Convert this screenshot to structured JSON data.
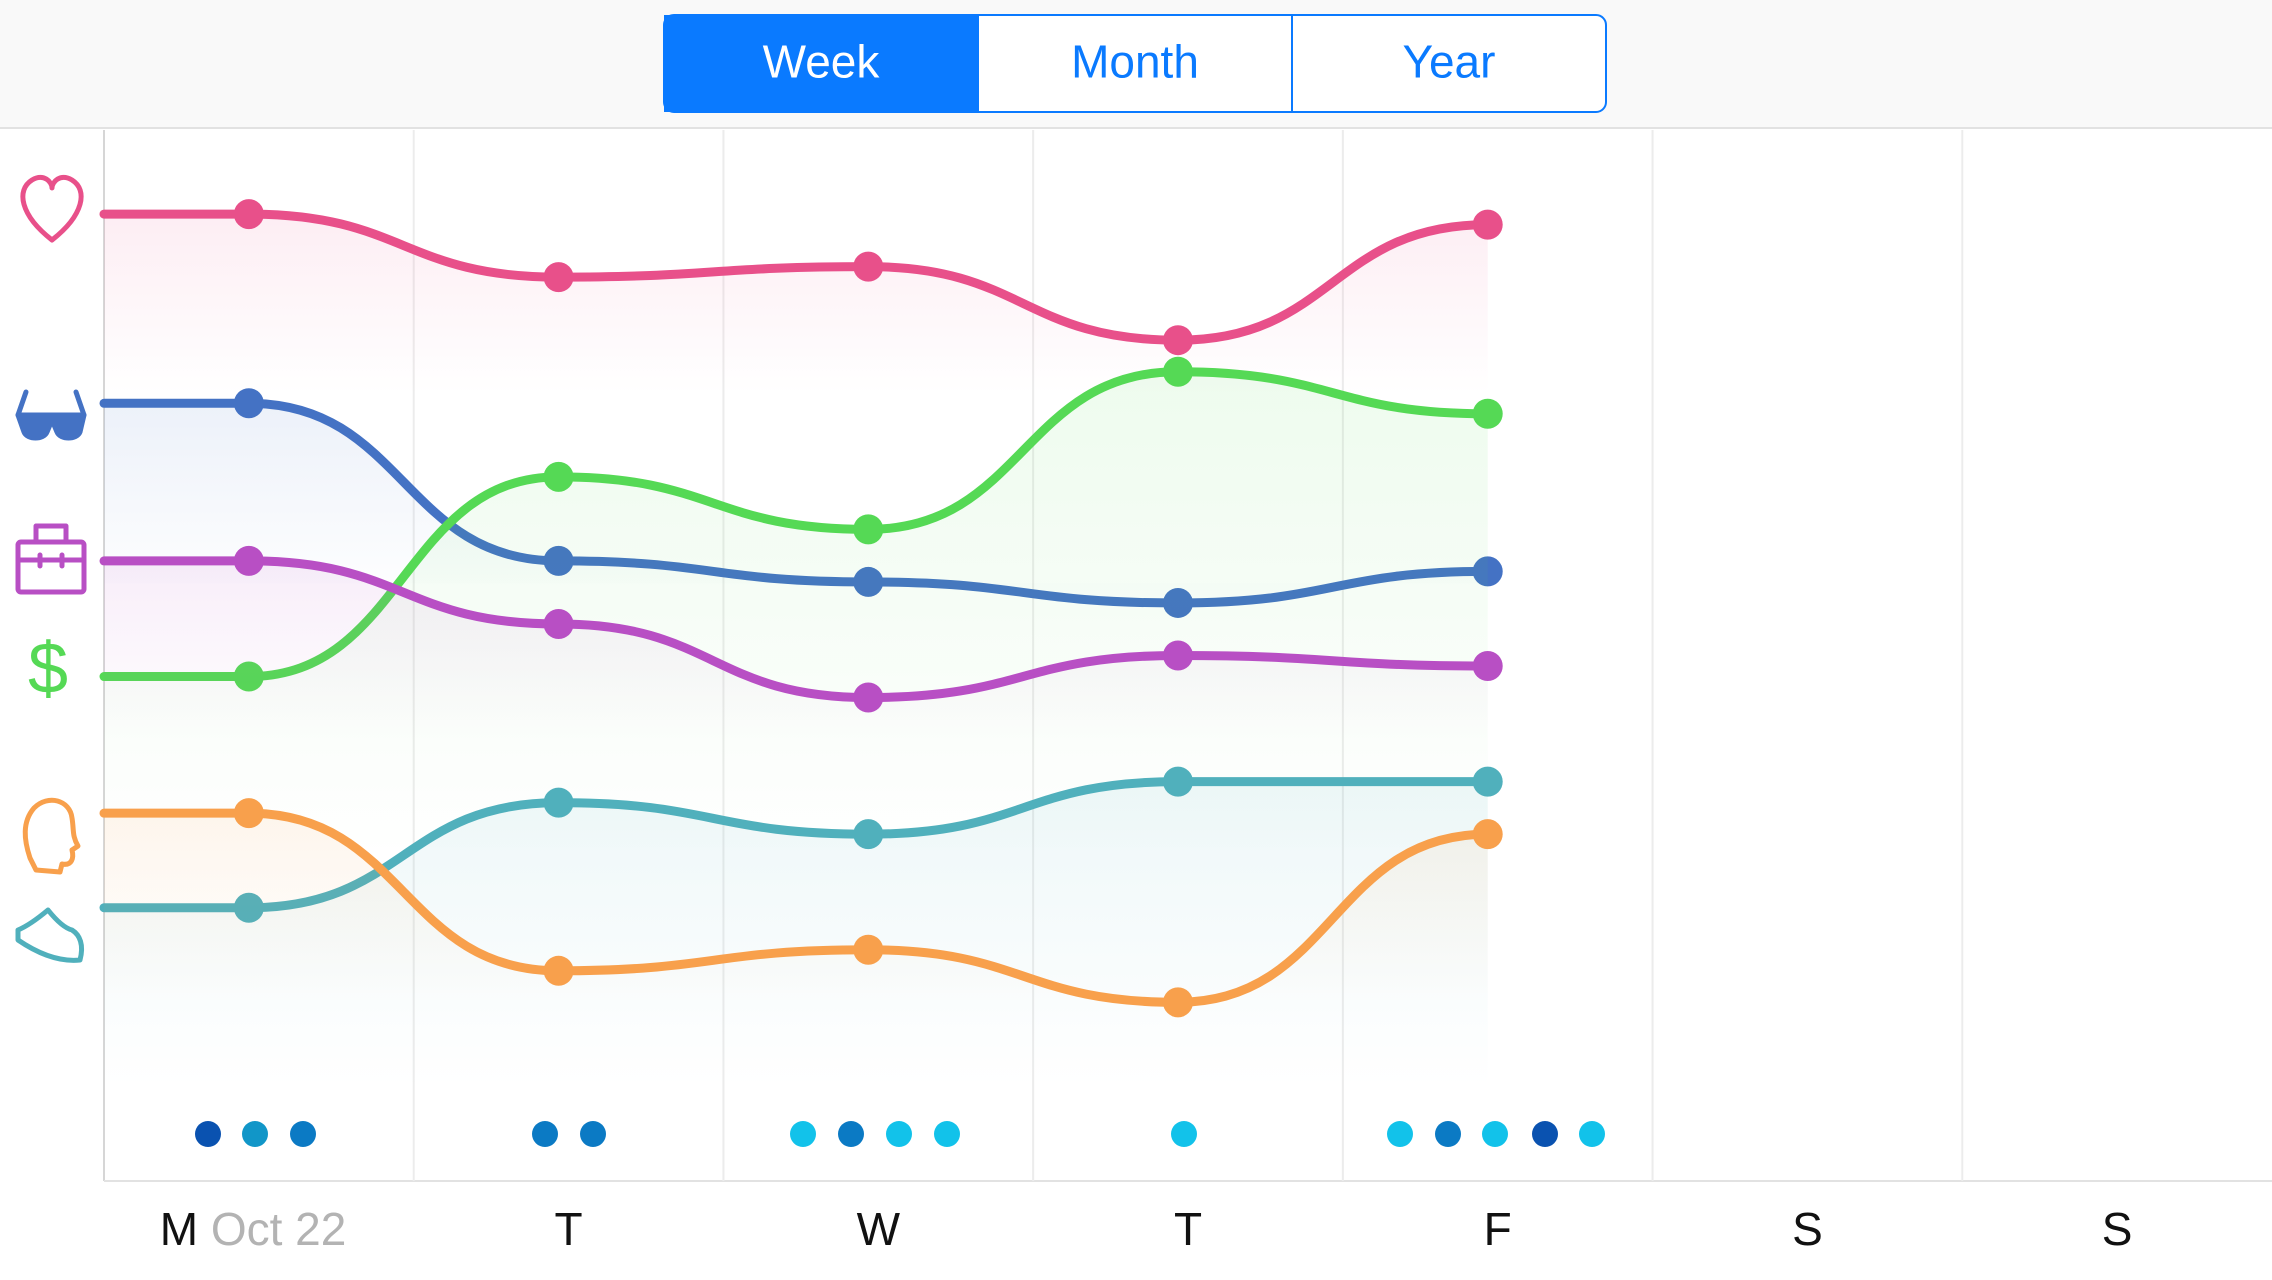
{
  "tabs": [
    "Week",
    "Month",
    "Year"
  ],
  "selected_tab": 0,
  "chart_data": {
    "type": "line",
    "categories": [
      "M",
      "T",
      "W",
      "T",
      "F",
      "S",
      "S"
    ],
    "date_label": "Oct 22",
    "ylim": [
      0,
      100
    ],
    "series": [
      {
        "name": "Heart",
        "color": "#e8508a",
        "values": [
          92,
          86,
          87,
          80,
          91,
          null,
          null
        ]
      },
      {
        "name": "Glasses",
        "color": "#4472c4",
        "values": [
          74,
          59,
          57,
          55,
          58,
          null,
          null
        ]
      },
      {
        "name": "Money",
        "color": "#55d955",
        "values": [
          48,
          67,
          62,
          77,
          73,
          null,
          null
        ]
      },
      {
        "name": "Work",
        "color": "#b84fc4",
        "values": [
          59,
          53,
          46,
          50,
          49,
          null,
          null
        ]
      },
      {
        "name": "Exercise",
        "color": "#50b0bc",
        "values": [
          26,
          36,
          33,
          38,
          38,
          null,
          null
        ]
      },
      {
        "name": "Mind",
        "color": "#f8a04c",
        "values": [
          35,
          20,
          22,
          17,
          33,
          null,
          null
        ]
      }
    ]
  }
}
